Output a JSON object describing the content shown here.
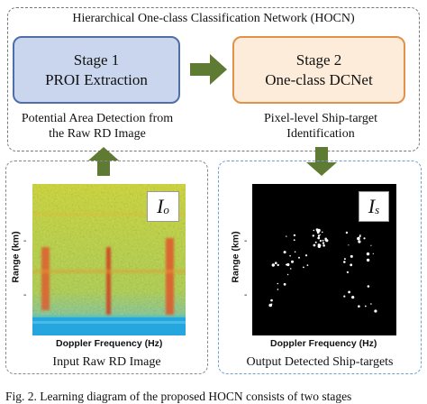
{
  "network": {
    "title": "Hierarchical One-class Classification Network (HOCN)",
    "stage1": {
      "line1": "Stage 1",
      "line2": "PROI Extraction",
      "fill": "#c9d6ee",
      "border": "#4f6fa8"
    },
    "stage2": {
      "line1": "Stage 2",
      "line2": "One-class DCNet",
      "fill": "#fdecd9",
      "border": "#e2914a"
    },
    "stage1_caption": "Potential Area Detection from the Raw RD Image",
    "stage2_caption": "Pixel-level Ship-target Identification"
  },
  "input_panel": {
    "badge_main": "I",
    "badge_sub": "o",
    "y_axis_label": "Range (km)",
    "x_axis_label": "Doppler Frequency (Hz)",
    "caption": "Input Raw RD Image"
  },
  "output_panel": {
    "badge_main": "I",
    "badge_sub": "s",
    "y_axis_label": "Range (km)",
    "x_axis_label": "Doppler Frequency (Hz)",
    "caption": "Output Detected Ship-targets"
  },
  "arrow_color": "#5f7a32",
  "figure_caption": "Fig. 2.   Learning diagram of the proposed HOCN consists of two stages"
}
